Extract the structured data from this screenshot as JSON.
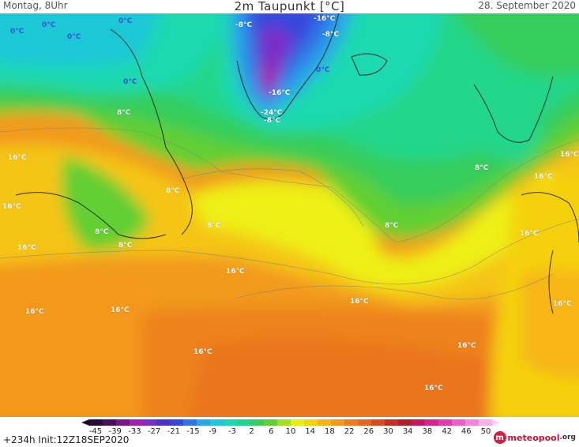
{
  "header": {
    "left": "Montag, 8Uhr",
    "title": "2m Taupunkt [°C]",
    "right": "28. September 2020"
  },
  "map_labels": [
    {
      "text": "0°C",
      "cold": true
    },
    {
      "text": "0°C",
      "cold": true
    },
    {
      "text": "0°C",
      "cold": true
    },
    {
      "text": "0°C",
      "cold": true
    },
    {
      "text": "0°C",
      "cold": true
    },
    {
      "text": "0°C",
      "cold": true
    },
    {
      "text": "-8°C",
      "cold": false
    },
    {
      "text": "-16°C",
      "cold": false
    },
    {
      "text": "-8°C",
      "cold": false
    },
    {
      "text": "-16°C",
      "cold": false
    },
    {
      "text": "-24°C",
      "cold": false
    },
    {
      "text": "-8°C",
      "cold": false
    },
    {
      "text": "8°C",
      "cold": false
    },
    {
      "text": "16°C",
      "cold": false
    },
    {
      "text": "16°C",
      "cold": false
    },
    {
      "text": "8°C",
      "cold": false
    },
    {
      "text": "16°C",
      "cold": false
    },
    {
      "text": "8°C",
      "cold": false
    },
    {
      "text": "8°C",
      "cold": false
    },
    {
      "text": "8°C",
      "cold": false
    },
    {
      "text": "16°C",
      "cold": false
    },
    {
      "text": "8°C",
      "cold": false
    },
    {
      "text": "8°C",
      "cold": false
    },
    {
      "text": "16°C",
      "cold": false
    },
    {
      "text": "16°C",
      "cold": false
    },
    {
      "text": "16°C",
      "cold": false
    },
    {
      "text": "16°C",
      "cold": false
    },
    {
      "text": "16°C",
      "cold": false
    },
    {
      "text": "16°C",
      "cold": false
    },
    {
      "text": "16°C",
      "cold": false
    },
    {
      "text": "16°C",
      "cold": false
    },
    {
      "text": "16°C",
      "cold": false
    },
    {
      "text": "16°C",
      "cold": false
    }
  ],
  "legend": {
    "ticks": [
      "-45",
      "-39",
      "-33",
      "-27",
      "-21",
      "-15",
      "-9",
      "-3",
      "2",
      "6",
      "10",
      "14",
      "18",
      "22",
      "26",
      "30",
      "34",
      "38",
      "42",
      "46",
      "50"
    ],
    "colors": [
      "#2a0a3a",
      "#4a0d5e",
      "#7a1585",
      "#a31fb0",
      "#7b2ec8",
      "#4a33c9",
      "#3446dc",
      "#2f74e6",
      "#2aa7e8",
      "#1fc8d6",
      "#1ad9b0",
      "#20d68a",
      "#35cd5c",
      "#62cf33",
      "#a4de1e",
      "#e6ef12",
      "#f5d10f",
      "#f7b514",
      "#f4981b",
      "#ef7d1e",
      "#e8651e",
      "#dc4a20",
      "#c92e24",
      "#b01e30",
      "#c4195e",
      "#d9238b",
      "#e53aaf",
      "#ec5ec8",
      "#f287da",
      "#f7b1e8"
    ]
  },
  "footer": {
    "run": "+234h  Init:12Z18SEP2020",
    "brand_mark": "m",
    "brand_name": "meteopool",
    "brand_tld": ".org"
  }
}
